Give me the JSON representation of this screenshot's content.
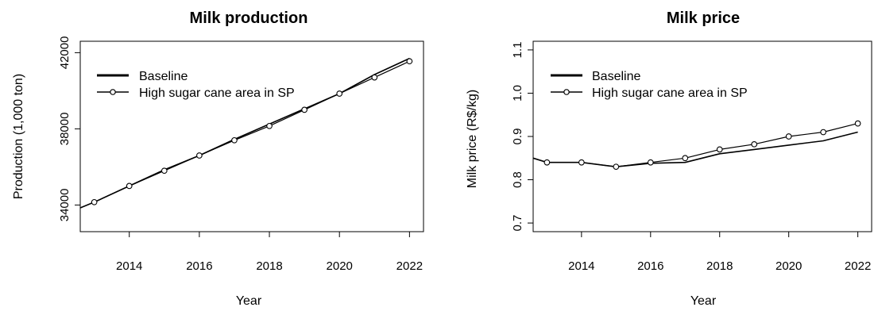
{
  "chart_data": [
    {
      "type": "line",
      "title": "Milk production",
      "xlabel": "Year",
      "ylabel": "Production (1,000 ton)",
      "x": [
        2013,
        2014,
        2015,
        2016,
        2017,
        2018,
        2019,
        2020,
        2021,
        2022
      ],
      "x_ticks": [
        "2014",
        "2016",
        "2018",
        "2020",
        "2022"
      ],
      "y_ticks": [
        "34000",
        "38000",
        "42000"
      ],
      "xlim": [
        2012.6,
        2022.4
      ],
      "ylim": [
        32600,
        42600
      ],
      "legend": {
        "position": "top-left"
      },
      "series": [
        {
          "name": "Baseline",
          "marker": "none",
          "line_start": [
            2012.6,
            33850
          ],
          "values": [
            34150,
            35000,
            35850,
            36600,
            37450,
            38250,
            39050,
            39850,
            40850,
            41700
          ]
        },
        {
          "name": "High sugar cane area in SP",
          "marker": "open-circle",
          "values": [
            34150,
            35000,
            35800,
            36600,
            37400,
            38150,
            39000,
            39850,
            40700,
            41550
          ]
        }
      ]
    },
    {
      "type": "line",
      "title": "Milk price",
      "xlabel": "Year",
      "ylabel": "Milk price (R$/kg)",
      "x": [
        2013,
        2014,
        2015,
        2016,
        2017,
        2018,
        2019,
        2020,
        2021,
        2022
      ],
      "x_ticks": [
        "2014",
        "2016",
        "2018",
        "2020",
        "2022"
      ],
      "y_ticks": [
        "0.7",
        "0.8",
        "0.9",
        "1.0",
        "1.1"
      ],
      "xlim": [
        2012.6,
        2022.4
      ],
      "ylim": [
        0.68,
        1.12
      ],
      "legend": {
        "position": "top-left"
      },
      "series": [
        {
          "name": "Baseline",
          "marker": "none",
          "line_start": [
            2012.6,
            0.85
          ],
          "values": [
            0.84,
            0.84,
            0.83,
            0.838,
            0.84,
            0.86,
            0.87,
            0.88,
            0.89,
            0.91
          ]
        },
        {
          "name": "High sugar cane area in SP",
          "marker": "open-circle",
          "values": [
            0.84,
            0.84,
            0.83,
            0.84,
            0.85,
            0.87,
            0.882,
            0.9,
            0.91,
            0.93
          ]
        }
      ]
    }
  ]
}
